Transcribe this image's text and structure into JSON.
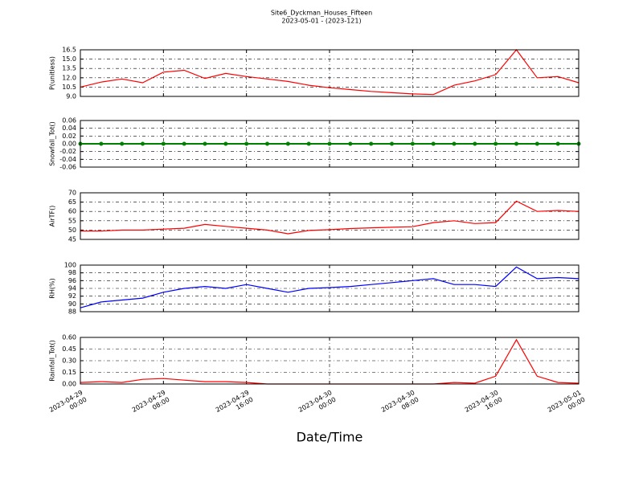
{
  "chart_data": [
    {
      "type": "line",
      "title": "Site6_Dyckman_Houses_Fifteen",
      "subtitle": "2023-05-01 - (2023-121)",
      "ylabel": "P(unitless)",
      "x": [
        "2023-04-29 00:00",
        "2023-04-29 02:00",
        "2023-04-29 04:00",
        "2023-04-29 06:00",
        "2023-04-29 08:00",
        "2023-04-29 10:00",
        "2023-04-29 12:00",
        "2023-04-29 14:00",
        "2023-04-29 16:00",
        "2023-04-29 18:00",
        "2023-04-29 20:00",
        "2023-04-29 22:00",
        "2023-04-30 00:00",
        "2023-04-30 02:00",
        "2023-04-30 04:00",
        "2023-04-30 06:00",
        "2023-04-30 08:00",
        "2023-04-30 10:00",
        "2023-04-30 12:00",
        "2023-04-30 14:00",
        "2023-04-30 16:00",
        "2023-04-30 18:00",
        "2023-04-30 20:00",
        "2023-04-30 22:00",
        "2023-05-01 00:00"
      ],
      "values": [
        10.5,
        11.3,
        11.8,
        11.2,
        12.9,
        13.2,
        11.9,
        12.7,
        12.2,
        11.8,
        11.4,
        10.8,
        10.4,
        10.1,
        9.8,
        9.6,
        9.4,
        9.3,
        10.8,
        11.5,
        12.5,
        16.5,
        12.0,
        12.2,
        11.2
      ],
      "color": "#ff0000",
      "xlim": [
        "2023-04-29 00:00",
        "2023-05-01 00:00"
      ],
      "ylim": [
        9,
        16.5
      ],
      "yticks": [
        {
          "value": 9,
          "label": "9.0"
        },
        10.5,
        {
          "value": 12,
          "label": "12.0"
        },
        13.5,
        {
          "value": 15,
          "label": "15.0"
        },
        16.5
      ],
      "grid": true
    },
    {
      "type": "line",
      "ylabel": "Snowfall_Tot()",
      "x": [
        "2023-04-29 00:00",
        "2023-04-29 02:00",
        "2023-04-29 04:00",
        "2023-04-29 06:00",
        "2023-04-29 08:00",
        "2023-04-29 10:00",
        "2023-04-29 12:00",
        "2023-04-29 14:00",
        "2023-04-29 16:00",
        "2023-04-29 18:00",
        "2023-04-29 20:00",
        "2023-04-29 22:00",
        "2023-04-30 00:00",
        "2023-04-30 02:00",
        "2023-04-30 04:00",
        "2023-04-30 06:00",
        "2023-04-30 08:00",
        "2023-04-30 10:00",
        "2023-04-30 12:00",
        "2023-04-30 14:00",
        "2023-04-30 16:00",
        "2023-04-30 18:00",
        "2023-04-30 20:00",
        "2023-04-30 22:00",
        "2023-05-01 00:00"
      ],
      "values": [
        0,
        0,
        0,
        0,
        0,
        0,
        0,
        0,
        0,
        0,
        0,
        0,
        0,
        0,
        0,
        0,
        0,
        0,
        0,
        0,
        0,
        0,
        0,
        0,
        0
      ],
      "color": "#008000",
      "markers": true,
      "xlim": [
        "2023-04-29 00:00",
        "2023-05-01 00:00"
      ],
      "ylim": [
        -0.06,
        0.06
      ],
      "yticks": [
        -0.06,
        -0.04,
        -0.02,
        {
          "value": 0,
          "label": "0.00"
        },
        0.02,
        0.04,
        0.06
      ],
      "grid": true
    },
    {
      "type": "line",
      "ylabel": "AirTF()",
      "x": [
        "2023-04-29 00:00",
        "2023-04-29 02:00",
        "2023-04-29 04:00",
        "2023-04-29 06:00",
        "2023-04-29 08:00",
        "2023-04-29 10:00",
        "2023-04-29 12:00",
        "2023-04-29 14:00",
        "2023-04-29 16:00",
        "2023-04-29 18:00",
        "2023-04-29 20:00",
        "2023-04-29 22:00",
        "2023-04-30 00:00",
        "2023-04-30 02:00",
        "2023-04-30 04:00",
        "2023-04-30 06:00",
        "2023-04-30 08:00",
        "2023-04-30 10:00",
        "2023-04-30 12:00",
        "2023-04-30 14:00",
        "2023-04-30 16:00",
        "2023-04-30 18:00",
        "2023-04-30 20:00",
        "2023-04-30 22:00",
        "2023-05-01 00:00"
      ],
      "values": [
        49.5,
        49.5,
        50,
        50,
        50.5,
        51,
        53,
        52,
        51,
        50,
        48,
        49.8,
        50.2,
        50.8,
        51.2,
        51.5,
        51.8,
        54,
        55,
        53.5,
        54,
        65.5,
        60,
        60.5,
        60
      ],
      "color": "#ff0000",
      "xlim": [
        "2023-04-29 00:00",
        "2023-05-01 00:00"
      ],
      "ylim": [
        45,
        70
      ],
      "yticks": [
        45,
        50,
        55,
        60,
        65,
        70
      ],
      "grid": true
    },
    {
      "type": "line",
      "ylabel": "RH(%)",
      "x": [
        "2023-04-29 00:00",
        "2023-04-29 02:00",
        "2023-04-29 04:00",
        "2023-04-29 06:00",
        "2023-04-29 08:00",
        "2023-04-29 10:00",
        "2023-04-29 12:00",
        "2023-04-29 14:00",
        "2023-04-29 16:00",
        "2023-04-29 18:00",
        "2023-04-29 20:00",
        "2023-04-29 22:00",
        "2023-04-30 00:00",
        "2023-04-30 02:00",
        "2023-04-30 04:00",
        "2023-04-30 06:00",
        "2023-04-30 08:00",
        "2023-04-30 10:00",
        "2023-04-30 12:00",
        "2023-04-30 14:00",
        "2023-04-30 16:00",
        "2023-04-30 18:00",
        "2023-04-30 20:00",
        "2023-04-30 22:00",
        "2023-05-01 00:00"
      ],
      "values": [
        89,
        90.5,
        91,
        91.5,
        93,
        94,
        94.5,
        94,
        95,
        94,
        93,
        94,
        94.2,
        94.5,
        95,
        95.5,
        96,
        96.5,
        95,
        95,
        94.5,
        99.5,
        96.5,
        96.8,
        96.5
      ],
      "color": "#0000ff",
      "xlim": [
        "2023-04-29 00:00",
        "2023-05-01 00:00"
      ],
      "ylim": [
        88,
        100
      ],
      "yticks": [
        88,
        90,
        92,
        94,
        96,
        98,
        100
      ],
      "grid": true
    },
    {
      "type": "line",
      "ylabel": "Rainfall_Tot()",
      "xlabel": "Date/Time",
      "x": [
        "2023-04-29 00:00",
        "2023-04-29 02:00",
        "2023-04-29 04:00",
        "2023-04-29 06:00",
        "2023-04-29 08:00",
        "2023-04-29 10:00",
        "2023-04-29 12:00",
        "2023-04-29 14:00",
        "2023-04-29 16:00",
        "2023-04-29 18:00",
        "2023-04-29 20:00",
        "2023-04-29 22:00",
        "2023-04-30 00:00",
        "2023-04-30 02:00",
        "2023-04-30 04:00",
        "2023-04-30 06:00",
        "2023-04-30 08:00",
        "2023-04-30 10:00",
        "2023-04-30 12:00",
        "2023-04-30 14:00",
        "2023-04-30 16:00",
        "2023-04-30 18:00",
        "2023-04-30 20:00",
        "2023-04-30 22:00",
        "2023-05-01 00:00"
      ],
      "values": [
        0.02,
        0.03,
        0.02,
        0.06,
        0.07,
        0.05,
        0.03,
        0.03,
        0.02,
        0,
        0,
        0,
        0,
        0,
        0,
        0,
        0,
        0,
        0.02,
        0.01,
        0.1,
        0.57,
        0.1,
        0.02,
        0.01
      ],
      "color": "#ff0000",
      "xlim": [
        "2023-04-29 00:00",
        "2023-05-01 00:00"
      ],
      "ylim": [
        0,
        0.6
      ],
      "yticks": [
        {
          "value": 0,
          "label": "0.00"
        },
        0.15,
        {
          "value": 0.3,
          "label": "0.30"
        },
        0.45,
        {
          "value": 0.6,
          "label": "0.60"
        }
      ],
      "xticks": [
        "2023-04-29 00:00",
        "2023-04-29 08:00",
        "2023-04-29 16:00",
        "2023-04-30 00:00",
        "2023-04-30 08:00",
        "2023-04-30 16:00",
        "2023-05-01 00:00"
      ],
      "grid": true
    }
  ]
}
